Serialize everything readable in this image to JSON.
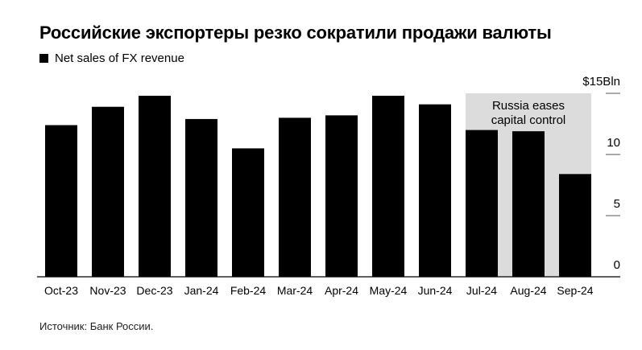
{
  "title": "Российские экспортеры резко сократили продажи валюты",
  "legend": "Net sales of FX revenue",
  "source": "Источник: Банк России.",
  "chart_data": {
    "type": "bar",
    "title": "Российские экспортеры резко сократили продажи валюты",
    "series": [
      {
        "name": "Net sales of FX revenue",
        "color": "#000000",
        "values": [
          12.4,
          13.9,
          14.8,
          12.9,
          10.5,
          13.0,
          13.2,
          14.8,
          14.1,
          12.0,
          11.9,
          8.4
        ]
      }
    ],
    "categories": [
      "Oct-23",
      "Nov-23",
      "Dec-23",
      "Jan-24",
      "Feb-24",
      "Mar-24",
      "Apr-24",
      "May-24",
      "Jun-24",
      "Jul-24",
      "Aug-24",
      "Sep-24"
    ],
    "ylim": [
      0,
      15
    ],
    "yticks": [
      0,
      5,
      10,
      15
    ],
    "ytick_labels": [
      "0",
      "5",
      "10",
      "$15Bln"
    ],
    "axis_position": "right",
    "annotation": {
      "text_lines": [
        "Russia eases",
        "capital control"
      ],
      "from": "Jul-24",
      "to": "Sep-24",
      "color": "#dcdcdc"
    }
  }
}
